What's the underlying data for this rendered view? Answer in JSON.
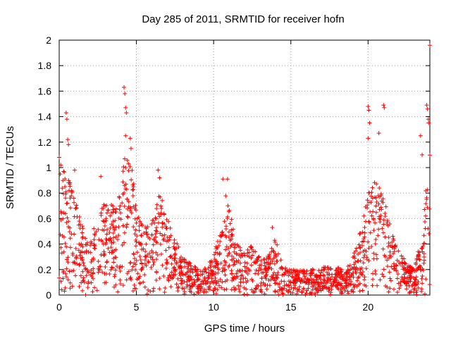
{
  "chart_data": {
    "type": "scatter",
    "title": "Day 285 of 2011, SRMTID for receiver hofn",
    "xlabel": "GPS time / hours",
    "ylabel": "SRMTID / TECUs",
    "xlim": [
      0,
      24
    ],
    "ylim": [
      0,
      2
    ],
    "xticks": [
      0,
      5,
      10,
      15,
      20
    ],
    "yticks": [
      0,
      0.2,
      0.4,
      0.6,
      0.8,
      1,
      1.2,
      1.4,
      1.6,
      1.8,
      2
    ],
    "xtick_labels": [
      "0",
      "5",
      "10",
      "15",
      "20"
    ],
    "ytick_labels": [
      "0",
      "0.2",
      "0.4",
      "0.6",
      "0.8",
      "1",
      "1.2",
      "1.4",
      "1.6",
      "1.8",
      "2"
    ],
    "grid": true,
    "legend": "none",
    "marker": "+",
    "color": "#ff0000",
    "envelope_profile": [
      [
        0.0,
        0.95
      ],
      [
        0.5,
        1.0
      ],
      [
        1.0,
        0.75
      ],
      [
        1.5,
        0.55
      ],
      [
        2.0,
        0.45
      ],
      [
        2.5,
        0.6
      ],
      [
        3.0,
        0.75
      ],
      [
        3.5,
        0.7
      ],
      [
        4.0,
        0.8
      ],
      [
        4.3,
        1.2
      ],
      [
        4.7,
        1.0
      ],
      [
        5.0,
        0.7
      ],
      [
        5.5,
        0.55
      ],
      [
        6.0,
        0.6
      ],
      [
        6.5,
        0.8
      ],
      [
        7.0,
        0.65
      ],
      [
        7.5,
        0.45
      ],
      [
        8.0,
        0.3
      ],
      [
        8.5,
        0.25
      ],
      [
        9.0,
        0.2
      ],
      [
        9.5,
        0.22
      ],
      [
        10.0,
        0.3
      ],
      [
        10.5,
        0.55
      ],
      [
        10.8,
        0.8
      ],
      [
        11.2,
        0.6
      ],
      [
        11.5,
        0.4
      ],
      [
        12.0,
        0.35
      ],
      [
        12.5,
        0.4
      ],
      [
        13.0,
        0.3
      ],
      [
        13.5,
        0.3
      ],
      [
        14.0,
        0.45
      ],
      [
        14.5,
        0.22
      ],
      [
        15.0,
        0.2
      ],
      [
        16.0,
        0.2
      ],
      [
        17.0,
        0.22
      ],
      [
        18.0,
        0.22
      ],
      [
        18.5,
        0.2
      ],
      [
        19.0,
        0.3
      ],
      [
        19.5,
        0.5
      ],
      [
        20.0,
        0.8
      ],
      [
        20.5,
        0.9
      ],
      [
        21.0,
        0.8
      ],
      [
        21.5,
        0.5
      ],
      [
        22.0,
        0.35
      ],
      [
        22.5,
        0.25
      ],
      [
        23.0,
        0.2
      ],
      [
        23.5,
        0.5
      ],
      [
        24.0,
        1.2
      ]
    ],
    "notable_points": [
      {
        "x": 0.0,
        "y": 1.08
      },
      {
        "x": 0.1,
        "y": 1.02
      },
      {
        "x": 0.45,
        "y": 1.43
      },
      {
        "x": 0.5,
        "y": 1.38
      },
      {
        "x": 0.55,
        "y": 1.22
      },
      {
        "x": 0.6,
        "y": 1.18
      },
      {
        "x": 1.0,
        "y": 0.98
      },
      {
        "x": 2.7,
        "y": 0.93
      },
      {
        "x": 4.2,
        "y": 1.63
      },
      {
        "x": 4.25,
        "y": 1.58
      },
      {
        "x": 4.3,
        "y": 1.47
      },
      {
        "x": 4.35,
        "y": 1.43
      },
      {
        "x": 4.3,
        "y": 1.25
      },
      {
        "x": 4.6,
        "y": 1.23
      },
      {
        "x": 4.65,
        "y": 1.15
      },
      {
        "x": 6.4,
        "y": 0.98
      },
      {
        "x": 6.5,
        "y": 0.92
      },
      {
        "x": 10.6,
        "y": 0.91
      },
      {
        "x": 10.9,
        "y": 0.91
      },
      {
        "x": 13.8,
        "y": 0.53
      },
      {
        "x": 20.0,
        "y": 1.48
      },
      {
        "x": 20.05,
        "y": 1.45
      },
      {
        "x": 20.1,
        "y": 1.35
      },
      {
        "x": 20.0,
        "y": 1.23
      },
      {
        "x": 20.7,
        "y": 1.27
      },
      {
        "x": 21.0,
        "y": 1.49
      },
      {
        "x": 21.05,
        "y": 1.47
      },
      {
        "x": 23.4,
        "y": 1.25
      },
      {
        "x": 23.5,
        "y": 1.1
      },
      {
        "x": 23.8,
        "y": 1.49
      },
      {
        "x": 23.85,
        "y": 1.46
      },
      {
        "x": 23.9,
        "y": 1.38
      },
      {
        "x": 23.92,
        "y": 1.35
      },
      {
        "x": 24.0,
        "y": 1.96
      }
    ]
  }
}
